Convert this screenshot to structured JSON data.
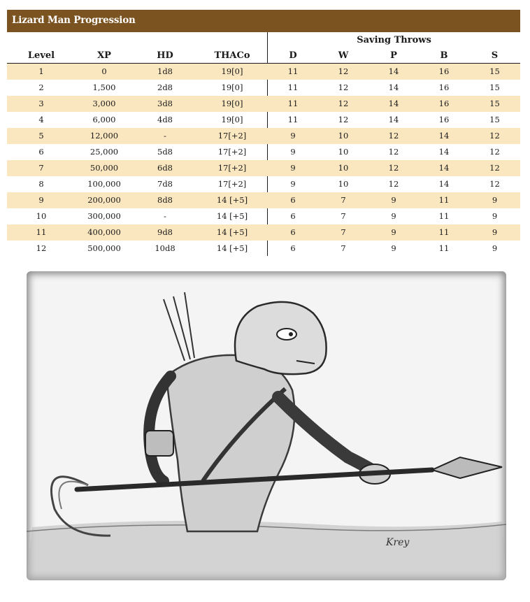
{
  "title": "Lizard Man Progression",
  "saving_throws_label": "Saving Throws",
  "headers": [
    "Level",
    "XP",
    "HD",
    "THACo",
    "D",
    "W",
    "P",
    "B",
    "S"
  ],
  "rows": [
    [
      "1",
      "0",
      "1d8",
      "19[0]",
      "11",
      "12",
      "14",
      "16",
      "15"
    ],
    [
      "2",
      "1,500",
      "2d8",
      "19[0]",
      "11",
      "12",
      "14",
      "16",
      "15"
    ],
    [
      "3",
      "3,000",
      "3d8",
      "19[0]",
      "11",
      "12",
      "14",
      "16",
      "15"
    ],
    [
      "4",
      "6,000",
      "4d8",
      "19[0]",
      "11",
      "12",
      "14",
      "16",
      "15"
    ],
    [
      "5",
      "12,000",
      "-",
      "17[+2]",
      "9",
      "10",
      "12",
      "14",
      "12"
    ],
    [
      "6",
      "25,000",
      "5d8",
      "17[+2]",
      "9",
      "10",
      "12",
      "14",
      "12"
    ],
    [
      "7",
      "50,000",
      "6d8",
      "17[+2]",
      "9",
      "10",
      "12",
      "14",
      "12"
    ],
    [
      "8",
      "100,000",
      "7d8",
      "17[+2]",
      "9",
      "10",
      "12",
      "14",
      "12"
    ],
    [
      "9",
      "200,000",
      "8d8",
      "14 [+5]",
      "6",
      "7",
      "9",
      "11",
      "9"
    ],
    [
      "10",
      "300,000",
      "-",
      "14 [+5]",
      "6",
      "7",
      "9",
      "11",
      "9"
    ],
    [
      "11",
      "400,000",
      "9d8",
      "14 [+5]",
      "6",
      "7",
      "9",
      "11",
      "9"
    ],
    [
      "12",
      "500,000",
      "10d8",
      "14 [+5]",
      "6",
      "7",
      "9",
      "11",
      "9"
    ]
  ],
  "illustration": {
    "signature": "Krey"
  },
  "colors": {
    "title_bar": "#7a5320",
    "row_stripe": "#fbe7bf"
  }
}
